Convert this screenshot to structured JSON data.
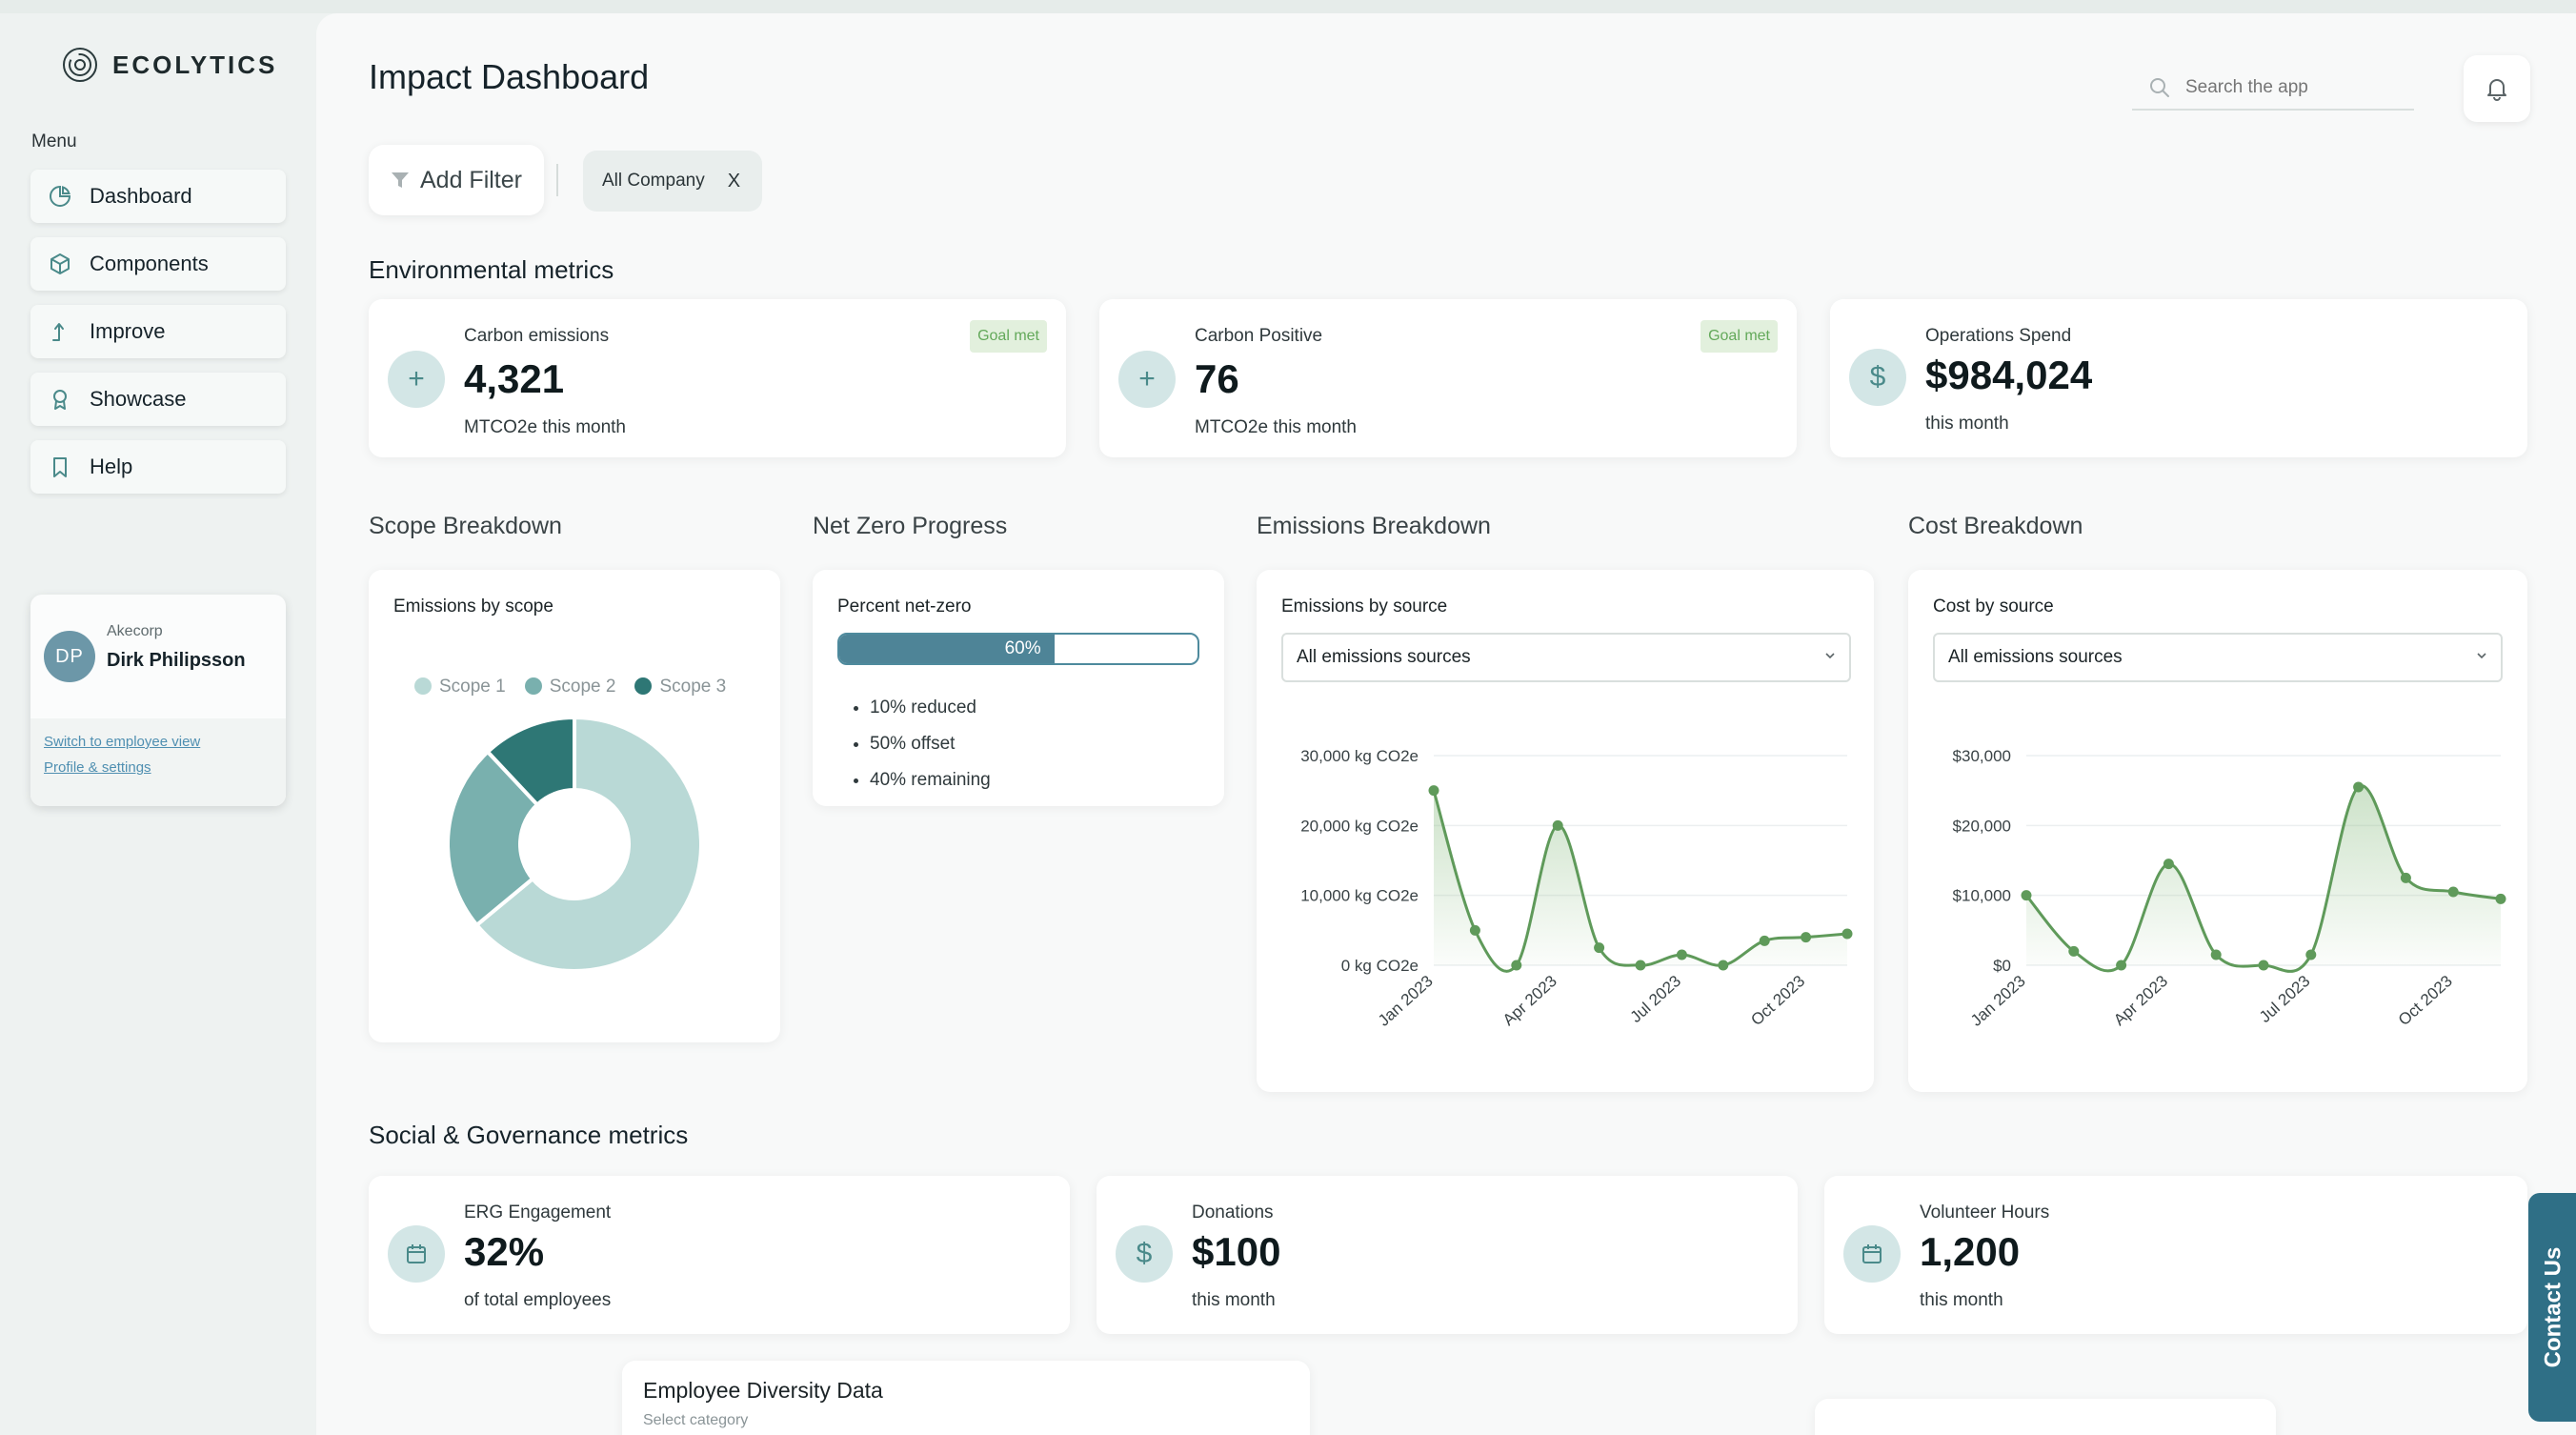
{
  "app": {
    "name": "ECOLYTICS"
  },
  "sidebar": {
    "menu_label": "Menu",
    "items": [
      {
        "label": "Dashboard",
        "icon": "pie-chart-icon"
      },
      {
        "label": "Components",
        "icon": "cube-icon"
      },
      {
        "label": "Improve",
        "icon": "arrow-up-icon"
      },
      {
        "label": "Showcase",
        "icon": "award-icon"
      },
      {
        "label": "Help",
        "icon": "bookmark-icon"
      }
    ],
    "user": {
      "initials": "DP",
      "company": "Akecorp",
      "name": "Dirk Philipsson",
      "links": [
        "Switch to employee view",
        "Profile & settings"
      ]
    }
  },
  "header": {
    "title": "Impact Dashboard",
    "search_placeholder": "Search the app"
  },
  "filters": {
    "add_label": "Add Filter",
    "chips": [
      {
        "label": "All Company",
        "close": "X"
      }
    ]
  },
  "environmental": {
    "title": "Environmental metrics",
    "cards": [
      {
        "label": "Carbon emissions",
        "value": "4,321",
        "sub": "MTCO2e this month",
        "badge": "Goal met",
        "icon": "+"
      },
      {
        "label": "Carbon Positive",
        "value": "76",
        "sub": "MTCO2e this month",
        "badge": "Goal met",
        "icon": "+"
      },
      {
        "label": "Operations Spend",
        "value": "$984,024",
        "sub": "this month",
        "icon": "$"
      }
    ]
  },
  "scope": {
    "section": "Scope Breakdown",
    "card_title": "Emissions by scope",
    "legend": [
      "Scope 1",
      "Scope 2",
      "Scope 3"
    ]
  },
  "netzero": {
    "section": "Net Zero Progress",
    "card_title": "Percent net-zero",
    "percent_label": "60%",
    "percent": 0.6,
    "bullets": [
      "10% reduced",
      "50% offset",
      "40% remaining"
    ]
  },
  "emissions": {
    "section": "Emissions Breakdown",
    "card_title": "Emissions by source",
    "select_value": "All emissions sources"
  },
  "cost": {
    "section": "Cost Breakdown",
    "card_title": "Cost by source",
    "select_value": "All emissions sources"
  },
  "social": {
    "title": "Social & Governance metrics",
    "cards": [
      {
        "label": "ERG Engagement",
        "value": "32%",
        "sub": "of total employees",
        "icon": "calendar-icon"
      },
      {
        "label": "Donations",
        "value": "$100",
        "sub": "this month",
        "icon": "$"
      },
      {
        "label": "Volunteer Hours",
        "value": "1,200",
        "sub": "this month",
        "icon": "calendar-icon"
      }
    ]
  },
  "diversity": {
    "title": "Employee Diversity Data",
    "sub": "Select category"
  },
  "contact_label": "Contact Us",
  "colors": {
    "accent": "#4e8497",
    "scope1": "#b9d9d6",
    "scope2": "#79b0ae",
    "scope3": "#2e7775",
    "line": "#5f9a5a",
    "contact": "#2f6f86"
  },
  "chart_data": [
    {
      "type": "pie",
      "title": "Emissions by scope",
      "categories": [
        "Scope 1",
        "Scope 2",
        "Scope 3"
      ],
      "values": [
        64,
        24,
        12
      ]
    },
    {
      "type": "area",
      "title": "Emissions by source",
      "x": [
        "Jan 2023",
        "Feb 2023",
        "Mar 2023",
        "Apr 2023",
        "May 2023",
        "Jun 2023",
        "Jul 2023",
        "Aug 2023",
        "Sep 2023",
        "Oct 2023",
        "Nov 2023"
      ],
      "tick_labels": [
        "Jan 2023",
        "Apr 2023",
        "Jul 2023",
        "Oct 2023"
      ],
      "y_tick_labels": [
        "30,000 kg CO2e",
        "20,000 kg CO2e",
        "10,000 kg CO2e",
        "0 kg CO2e"
      ],
      "values": [
        25000,
        5000,
        0,
        20000,
        2500,
        0,
        1500,
        0,
        3500,
        4000,
        4500
      ],
      "ylim": [
        0,
        30000
      ]
    },
    {
      "type": "area",
      "title": "Cost by source",
      "x": [
        "Jan 2023",
        "Feb 2023",
        "Mar 2023",
        "Apr 2023",
        "May 2023",
        "Jun 2023",
        "Jul 2023",
        "Aug 2023",
        "Sep 2023",
        "Oct 2023",
        "Nov 2023"
      ],
      "tick_labels": [
        "Jan 2023",
        "Apr 2023",
        "Jul 2023",
        "Oct 2023"
      ],
      "y_tick_labels": [
        "$30,000",
        "$20,000",
        "$10,000",
        "$0"
      ],
      "values": [
        10000,
        2000,
        0,
        14500,
        1500,
        0,
        1500,
        25500,
        12500,
        10500,
        9500
      ],
      "ylim": [
        0,
        30000
      ]
    }
  ]
}
